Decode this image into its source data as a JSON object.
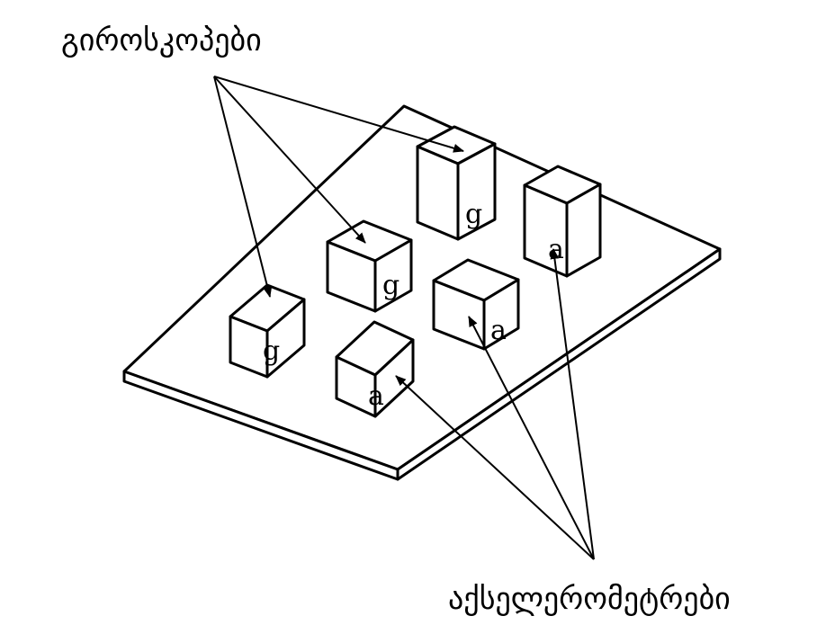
{
  "labels": {
    "gyroscopes": "გიროსკოპები",
    "accelerometers": "აქსელერომეტრები"
  },
  "sensor_marks": {
    "gyro": "g",
    "accel": "a"
  },
  "colors": {
    "line": "#000000",
    "background": "#ffffff"
  }
}
